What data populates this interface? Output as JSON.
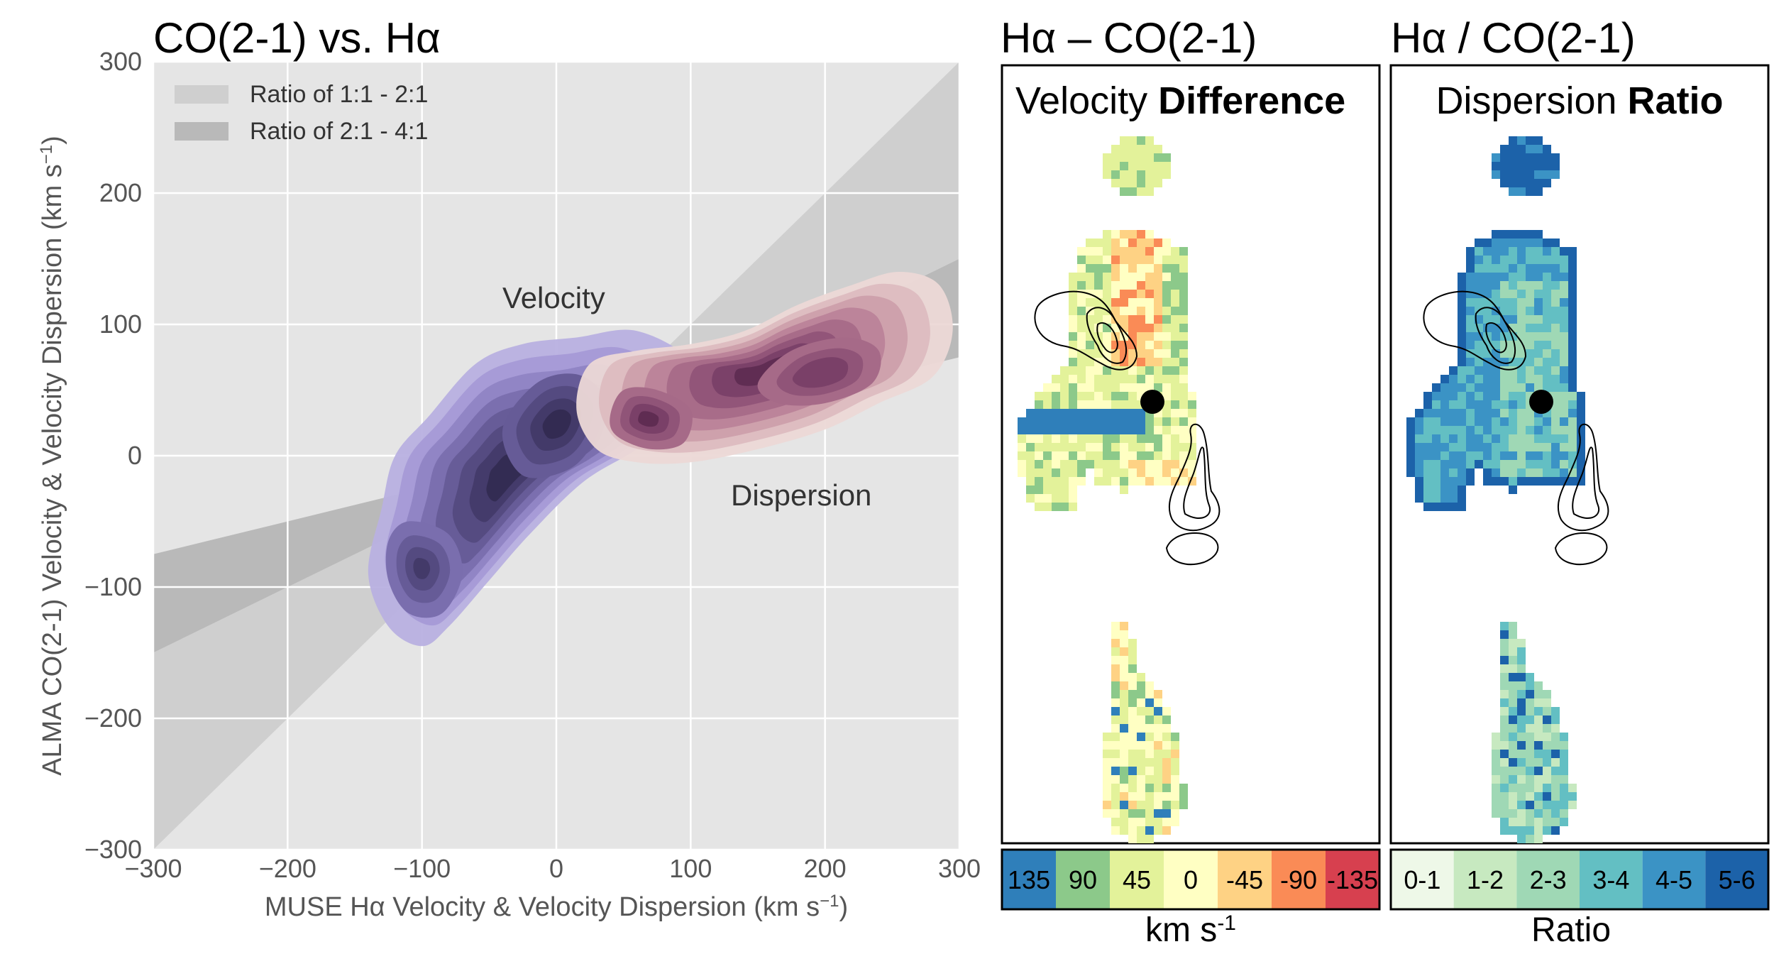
{
  "left": {
    "title": "CO(2-1) vs. Hα",
    "xlabel": "MUSE Hα Velocity & Velocity Dispersion (km s",
    "xlabel_sup": "−1",
    "xlabel_end": ")",
    "ylabel": "ALMA CO(2-1) Velocity & Velocity Dispersion (km s",
    "ylabel_sup": "−1",
    "ylabel_end": ")",
    "legend": [
      "Ratio of 1:1 - 2:1",
      "Ratio of 2:1 - 4:1"
    ],
    "annotations": {
      "velocity": "Velocity",
      "dispersion": "Dispersion"
    },
    "xticks": [
      "−300",
      "−200",
      "−100",
      "0",
      "100",
      "200",
      "300"
    ],
    "yticks": [
      "300",
      "200",
      "100",
      "0",
      "−100",
      "−200",
      "−300"
    ]
  },
  "middle": {
    "title": "Hα – CO(2-1)",
    "panel_label": "Velocity ",
    "panel_label_bold": "Difference",
    "colorbar_labels": [
      "135",
      "90",
      "45",
      "0",
      "-45",
      "-90",
      "-135"
    ],
    "colorbar_unit": "km s",
    "colorbar_unit_sup": "-1"
  },
  "right": {
    "title": "Hα / CO(2-1)",
    "panel_label": "Dispersion ",
    "panel_label_bold": "Ratio",
    "colorbar_labels": [
      "0-1",
      "1-2",
      "2-3",
      "3-4",
      "4-5",
      "5-6"
    ],
    "colorbar_unit": "Ratio"
  },
  "colors": {
    "plot_bg": "#e5e5e5",
    "band_light": "#cfcfcf",
    "band_dark": "#b9b9b9",
    "velocity_kde": [
      "#b8b0e0",
      "#a59ad6",
      "#8f84c4",
      "#7a6eae",
      "#665b97",
      "#544a80",
      "#433a69",
      "#332b52"
    ],
    "dispersion_kde": [
      "#ecd8d6",
      "#ddbcc0",
      "#cc9fab",
      "#ba8399",
      "#a66a88",
      "#905478",
      "#7a4068",
      "#5f2c52"
    ],
    "diff_cmap": [
      "#2f7fba",
      "#8cc98a",
      "#e3f29a",
      "#ffffc3",
      "#fed284",
      "#fa8b56",
      "#d7404f"
    ],
    "ratio_cmap": [
      "#eef8e8",
      "#c7e9c0",
      "#9fd8b5",
      "#63bfc3",
      "#3b93c5",
      "#1c62a9"
    ]
  },
  "chart_data": [
    {
      "type": "area",
      "title": "CO(2-1) vs. Hα",
      "xlabel": "MUSE Hα Velocity & Velocity Dispersion (km s−1)",
      "ylabel": "ALMA CO(2-1) Velocity & Velocity Dispersion (km s−1)",
      "xlim": [
        -300,
        300
      ],
      "ylim": [
        -300,
        300
      ],
      "grid": true,
      "legend_position": "top-left",
      "bands": [
        {
          "name": "Ratio of 1:1 - 2:1",
          "slope_range": [
            0.5,
            1.0
          ]
        },
        {
          "name": "Ratio of 2:1 - 4:1",
          "slope_range": [
            0.25,
            0.5
          ]
        }
      ],
      "series": [
        {
          "name": "Velocity",
          "kde_peaks": [
            {
              "x": 5,
              "y": 35
            },
            {
              "x": -95,
              "y": -90
            }
          ],
          "extent_x": [
            -140,
            100
          ],
          "extent_y": [
            -145,
            90
          ]
        },
        {
          "name": "Dispersion",
          "kde_peaks": [
            {
              "x": 65,
              "y": 30
            },
            {
              "x": 195,
              "y": 60
            }
          ],
          "extent_x": [
            15,
            295
          ],
          "extent_y": [
            -10,
            140
          ]
        }
      ]
    },
    {
      "type": "heatmap",
      "title": "Hα – CO(2-1) Velocity Difference",
      "colorbar_categories": [
        "135",
        "90",
        "45",
        "0",
        "-45",
        "-90",
        "-135"
      ],
      "colorbar_unit": "km s-1"
    },
    {
      "type": "heatmap",
      "title": "Hα / CO(2-1) Dispersion Ratio",
      "colorbar_categories": [
        "0-1",
        "1-2",
        "2-3",
        "3-4",
        "4-5",
        "5-6"
      ],
      "colorbar_unit": "Ratio"
    }
  ]
}
